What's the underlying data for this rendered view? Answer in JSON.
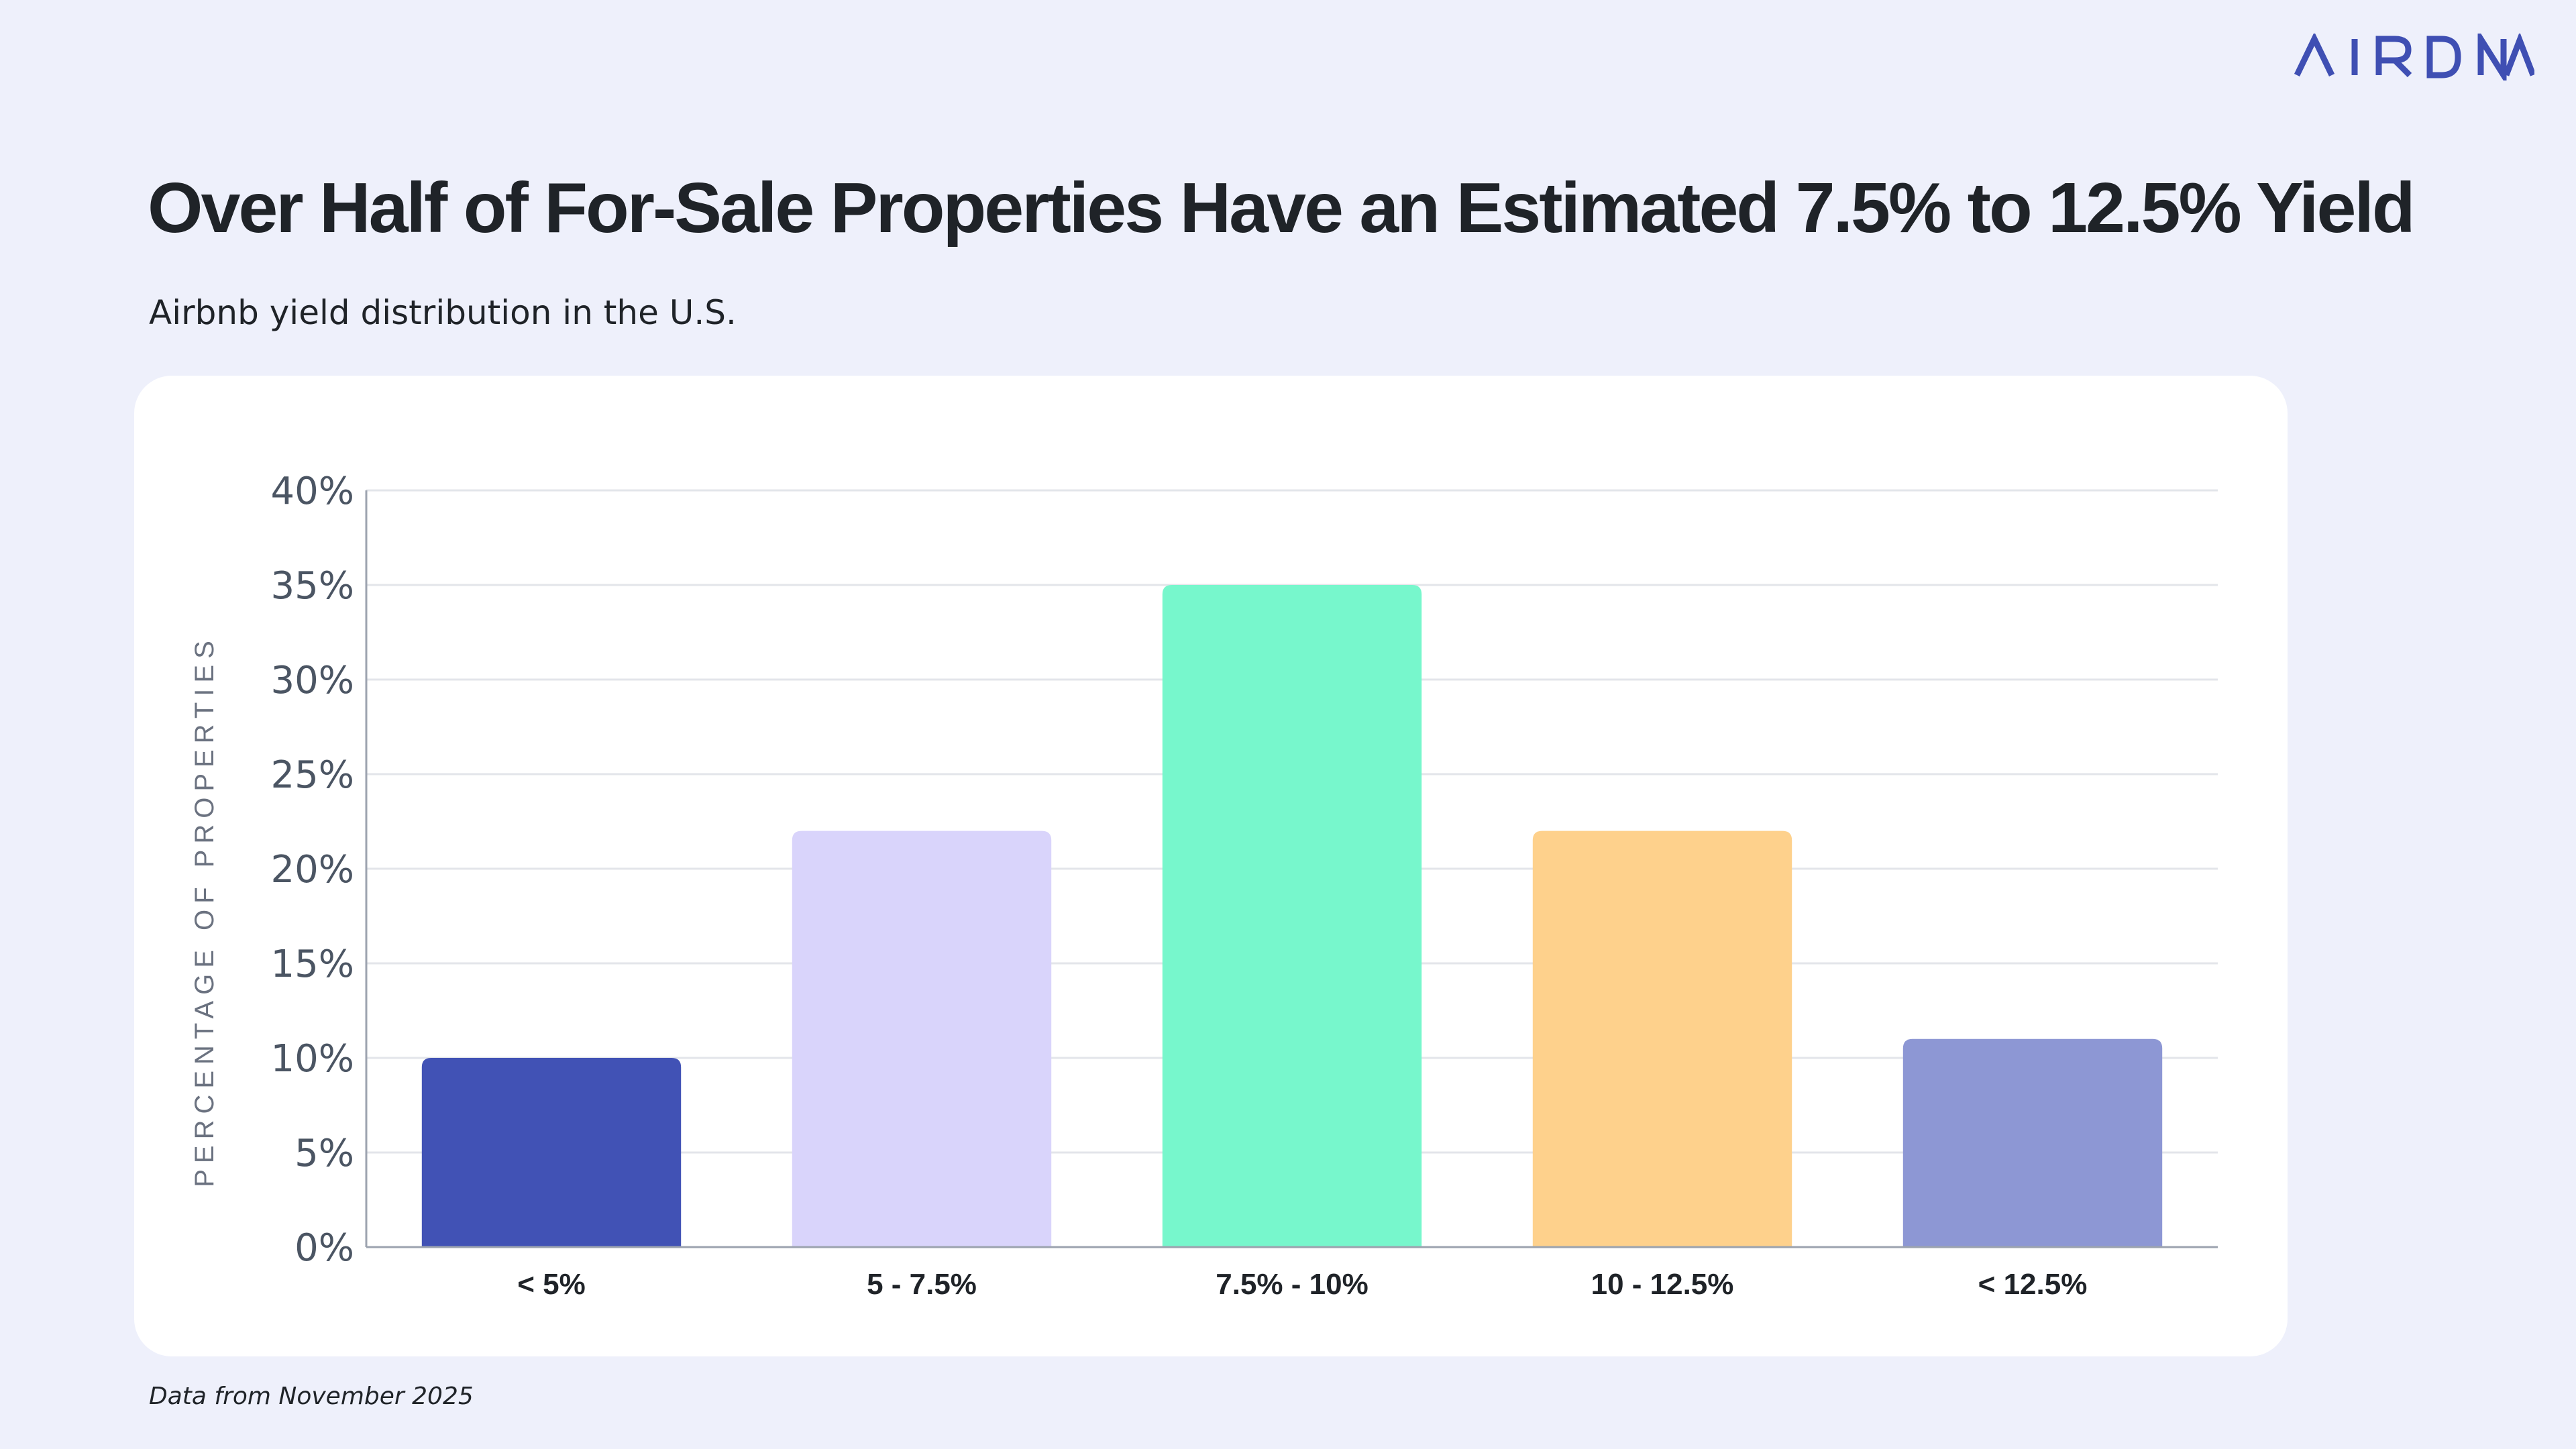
{
  "brand": {
    "logo_text": "AIRDNA",
    "logo_color": "#3f4fb3"
  },
  "header": {
    "title": "Over Half of For-Sale Properties Have an Estimated 7.5% to 12.5% Yield",
    "subtitle": "Airbnb yield distribution in the U.S."
  },
  "footer": {
    "note": "Data from November 2025"
  },
  "chart_data": {
    "type": "bar",
    "categories": [
      "< 5%",
      "5 - 7.5%",
      "7.5% - 10%",
      "10 - 12.5%",
      "< 12.5%"
    ],
    "values": [
      10,
      22,
      35,
      22,
      11
    ],
    "colors": [
      "#4152b5",
      "#d9d4fb",
      "#77f7cc",
      "#fed18c",
      "#8d97d4"
    ],
    "ylabel": "PERCENTAGE OF PROPERTIES",
    "xlabel": "",
    "ylim": [
      0,
      40
    ],
    "yticks": [
      0,
      5,
      10,
      15,
      20,
      25,
      30,
      35,
      40
    ],
    "ytick_labels": [
      "0%",
      "5%",
      "10%",
      "15%",
      "20%",
      "25%",
      "30%",
      "35%",
      "40%"
    ],
    "grid": true,
    "legend": "none"
  }
}
